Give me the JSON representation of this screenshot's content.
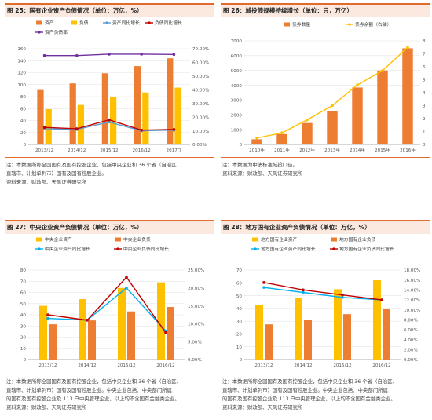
{
  "charts": [
    {
      "title": "图 25：国有企业资产负债情况（单位：万亿，%）",
      "notes": [
        "注：本数据所称全国国有及国有控股企业，包括中央企业和 36 个省（自治区、",
        "直辖市、计划单列市）国有及国有控股企业。",
        "资料来源：财政部、天风证券研究所"
      ]
    },
    {
      "title": "图 26：城投债规模持续增长（单位：只，万亿）",
      "notes": [
        "注：本数据为中债标准城投口径。",
        "资料来源：财政部、天风证券研究所"
      ]
    },
    {
      "title": "图 27：中央企业资产负债情况（单位：万亿，%）",
      "notes": [
        "注：本数据所称全国国有及国有控股企业，包括中央企业和 36 个省（自治区、",
        "直辖市、计划单列市）国有及国有控股企业。中央企业包括：中央部门所属",
        "的国有及国有控股企业及 113 户中央管理企业，以上均不含国有金融类企业。",
        "资料来源：财政部、天风证券研究所"
      ]
    },
    {
      "title": "图 28：地方国有企业资产负债情况（单位：万亿，%）",
      "notes": [
        "注：本数据所称全国国有及国有控股企业，包括中央企业和 36 个省（自治区、",
        "直辖市、计划单列市）国有及国有控股企业。中央企业包括：中央部门所属",
        "的国有及国有控股企业及 113 户中央管理企业，以上均不含国有金融类企业。",
        "资料来源：财政部、天风证券研究所"
      ]
    }
  ],
  "chart_data": [
    {
      "type": "bar",
      "categories": [
        "2013/12",
        "2014/12",
        "2015/12",
        "2016/12",
        "2017/7"
      ],
      "ylim": [
        0,
        160
      ],
      "yticks": [
        0,
        20,
        40,
        60,
        80,
        100,
        120,
        140,
        160
      ],
      "y2lim": [
        0,
        70
      ],
      "y2ticks": [
        0,
        10,
        20,
        30,
        40,
        50,
        60,
        70
      ],
      "y2_percent": true,
      "y2_decimals": 2,
      "series": [
        {
          "name": "资产",
          "kind": "bar",
          "axis": "left",
          "color": "#ed7d31",
          "values": [
            91,
            102,
            119,
            131,
            144
          ]
        },
        {
          "name": "负债",
          "kind": "bar",
          "axis": "left",
          "color": "#ffc000",
          "values": [
            59,
            66,
            79,
            87,
            95
          ]
        },
        {
          "name": "资产同比增长",
          "kind": "line",
          "axis": "right",
          "color": "#5b9bd5",
          "values": [
            11.5,
            11,
            16.4,
            10,
            10.5
          ]
        },
        {
          "name": "负债同比增长",
          "kind": "line",
          "axis": "right",
          "color": "#c00000",
          "values": [
            12.5,
            11.5,
            18,
            10.5,
            11
          ]
        },
        {
          "name": "资产负债率",
          "kind": "line",
          "axis": "right",
          "color": "#7030a0",
          "values": [
            65,
            65,
            66,
            66,
            65.8
          ]
        }
      ],
      "legend_position": "top"
    },
    {
      "type": "bar",
      "categories": [
        "2010年",
        "2011年",
        "2012年",
        "2013年",
        "2014年",
        "2015年",
        "2016年"
      ],
      "ylim": [
        0,
        7000
      ],
      "yticks": [
        0,
        1000,
        2000,
        3000,
        4000,
        5000,
        6000,
        7000
      ],
      "y2lim": [
        0,
        8
      ],
      "y2ticks": [
        0,
        1,
        2,
        3,
        4,
        5,
        6,
        7,
        8
      ],
      "y2_percent": false,
      "y2_decimals": 0,
      "series": [
        {
          "name": "债券数量",
          "kind": "bar",
          "axis": "left",
          "color": "#ed7d31",
          "values": [
            350,
            700,
            1450,
            2250,
            3850,
            5000,
            6500
          ]
        },
        {
          "name": "债券余额（右轴）",
          "kind": "line",
          "axis": "right",
          "color": "#ffc000",
          "values": [
            0.5,
            0.9,
            1.9,
            3.0,
            4.6,
            5.7,
            7.5
          ]
        }
      ],
      "legend_position": "top"
    },
    {
      "type": "bar",
      "categories": [
        "2013/12",
        "2014/12",
        "2015/12",
        "2016/12"
      ],
      "ylim": [
        0,
        80
      ],
      "yticks": [
        0,
        10,
        20,
        30,
        40,
        50,
        60,
        70,
        80
      ],
      "y2lim": [
        0,
        25
      ],
      "y2ticks": [
        0,
        5,
        10,
        15,
        20,
        25
      ],
      "y2_percent": true,
      "y2_decimals": 2,
      "series": [
        {
          "name": "中央企业资产",
          "kind": "bar",
          "axis": "left",
          "color": "#ffc000",
          "values": [
            48,
            54,
            64,
            69
          ]
        },
        {
          "name": "中央企业负债",
          "kind": "bar",
          "axis": "left",
          "color": "#ed7d31",
          "values": [
            31.5,
            35,
            43,
            47
          ]
        },
        {
          "name": "中央企业资产同比增长",
          "kind": "line",
          "axis": "right",
          "color": "#00b0f0",
          "values": [
            11.5,
            11,
            20,
            8
          ]
        },
        {
          "name": "中央企业负债同比增长",
          "kind": "line",
          "axis": "right",
          "color": "#c00000",
          "values": [
            12.5,
            11,
            23,
            7.5
          ]
        }
      ],
      "legend_position": "top"
    },
    {
      "type": "bar",
      "categories": [
        "2013/12",
        "2014/12",
        "2015/12",
        "2016/12"
      ],
      "ylim": [
        0,
        70
      ],
      "yticks": [
        0,
        10,
        20,
        30,
        40,
        50,
        60,
        70
      ],
      "y2lim": [
        0,
        18
      ],
      "y2ticks": [
        0,
        2,
        4,
        6,
        8,
        10,
        12,
        14,
        16,
        18
      ],
      "y2_percent": true,
      "y2_decimals": 2,
      "series": [
        {
          "name": "地方国有企业资产",
          "kind": "bar",
          "axis": "left",
          "color": "#ffc000",
          "values": [
            43,
            48.5,
            55,
            62
          ]
        },
        {
          "name": "地方国有企业负债",
          "kind": "bar",
          "axis": "left",
          "color": "#ed7d31",
          "values": [
            27.5,
            31,
            35.5,
            39.5
          ]
        },
        {
          "name": "地方国有企业资产同比增长",
          "kind": "line",
          "axis": "right",
          "color": "#00b0f0",
          "values": [
            14.5,
            13.5,
            12.5,
            12
          ]
        },
        {
          "name": "地方国有企业负债同比增长",
          "kind": "line",
          "axis": "right",
          "color": "#c00000",
          "values": [
            15.5,
            14,
            13,
            12
          ]
        }
      ],
      "legend_position": "top"
    }
  ]
}
